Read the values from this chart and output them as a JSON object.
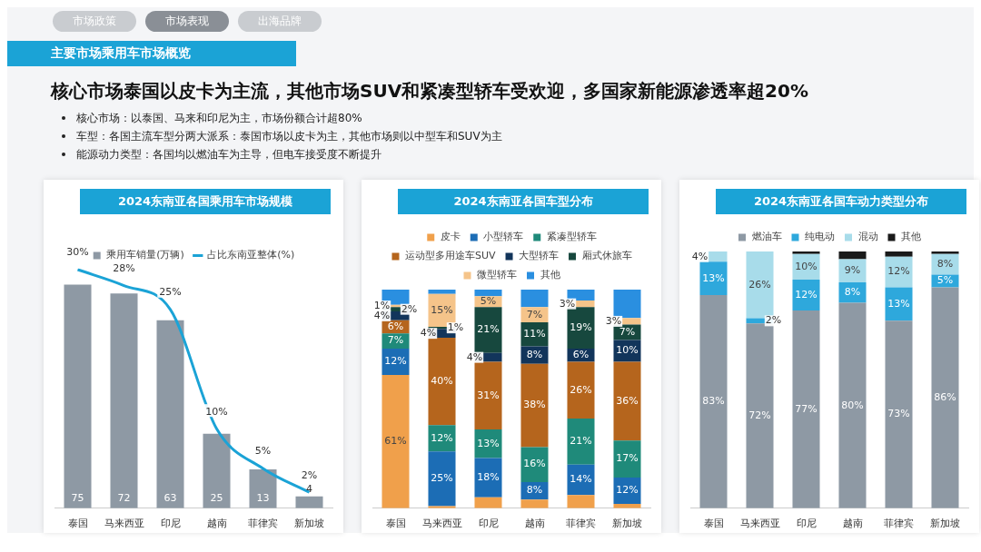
{
  "chart_data": [
    {
      "type": "other",
      "title": "核心市场泰国以皮卡为主流，其他市场SUV和紧凑型轿车受欢迎，多国家新能源渗透率超20%",
      "annotations": [
        "市场政策",
        "市场表现",
        "出海品牌",
        "主要市场乘用车市场概览",
        "核心市场：以泰国、马来和印尼为主，市场份额合计超80%",
        "车型：各国主流车型分两大派系：泰国市场以皮卡为主，其他市场则以中型车和SUV为主",
        "能源动力类型：各国均以燃油车为主导，但电车接受度不断提升"
      ]
    },
    {
      "type": "bar",
      "title": "2024东南亚各国乘用车市场规模",
      "categories": [
        "泰国",
        "马来西亚",
        "印尼",
        "越南",
        "菲律宾",
        "新加坡"
      ],
      "legend": "top",
      "series": [
        {
          "name": "乘用车销量(万辆)",
          "color": "#8e99a4",
          "values": [
            75,
            72,
            63,
            25,
            13,
            4
          ],
          "value_labels": [
            "75",
            "72",
            "63",
            "25",
            "13",
            "4"
          ]
        },
        {
          "name": "占比东南亚整体(%)",
          "type": "line",
          "axis": "y2",
          "color": "#1ba3d6",
          "values": [
            30,
            28,
            25,
            10,
            5,
            2
          ],
          "value_labels": [
            "30%",
            "28%",
            "25%",
            "10%",
            "5%",
            "2%"
          ]
        }
      ]
    },
    {
      "type": "bar",
      "title": "2024东南亚各国车型分布",
      "stacked": true,
      "categories": [
        "泰国",
        "马来西亚",
        "印尼",
        "越南",
        "菲律宾",
        "新加坡"
      ],
      "legend": "top",
      "series": [
        {
          "name": "皮卡",
          "color": "#f0a04b",
          "values": [
            61,
            1,
            5,
            4,
            6,
            2
          ],
          "value_labels": [
            "61%",
            null,
            null,
            null,
            null,
            null
          ]
        },
        {
          "name": "小型轿车",
          "color": "#1c6db5",
          "values": [
            12,
            25,
            18,
            8,
            14,
            12
          ],
          "value_labels": [
            "12%",
            "25%",
            "18%",
            "8%",
            "14%",
            "12%"
          ]
        },
        {
          "name": "紧凑型轿车",
          "color": "#1f8a7a",
          "values": [
            7,
            12,
            13,
            16,
            21,
            17
          ],
          "value_labels": [
            "7%",
            "12%",
            "13%",
            "16%",
            "21%",
            "17%"
          ]
        },
        {
          "name": "运动型多用途车SUV",
          "color": "#b5651d",
          "values": [
            6,
            40,
            31,
            38,
            26,
            36
          ],
          "value_labels": [
            "6%",
            "40%",
            "31%",
            "38%",
            "26%",
            "36%"
          ]
        },
        {
          "name": "大型轿车",
          "color": "#12355b",
          "values": [
            4,
            4,
            4,
            8,
            6,
            10
          ],
          "value_labels": [
            "4%",
            "4%",
            "4%",
            "8%",
            "6%",
            "10%"
          ]
        },
        {
          "name": "厢式休旅车",
          "color": "#17483e",
          "values": [
            2,
            1,
            21,
            11,
            19,
            7
          ],
          "value_labels": [
            "2%",
            "1%",
            "21%",
            "11%",
            "19%",
            "7%"
          ]
        },
        {
          "name": "微型轿车",
          "color": "#f5c48a",
          "values": [
            1,
            15,
            5,
            7,
            3,
            3
          ],
          "value_labels": [
            "1%",
            "15%",
            "5%",
            "7%",
            "3%",
            "3%"
          ]
        },
        {
          "name": "其他",
          "color": "#2a8fe0",
          "values": [
            7,
            2,
            3,
            8,
            5,
            13
          ],
          "value_labels": [
            null,
            null,
            null,
            null,
            null,
            null
          ]
        }
      ]
    },
    {
      "type": "bar",
      "title": "2024东南亚各国车动力类型分布",
      "stacked": true,
      "categories": [
        "泰国",
        "马来西亚",
        "印尼",
        "越南",
        "菲律宾",
        "新加坡"
      ],
      "legend": "top",
      "series": [
        {
          "name": "燃油车",
          "color": "#8e99a4",
          "values": [
            83,
            72,
            77,
            80,
            73,
            86
          ],
          "value_labels": [
            "83%",
            "72%",
            "77%",
            "80%",
            "73%",
            "86%"
          ]
        },
        {
          "name": "纯电动",
          "color": "#2ea8dc",
          "values": [
            13,
            2,
            12,
            8,
            13,
            5
          ],
          "value_labels": [
            "13%",
            "2%",
            "12%",
            "8%",
            "13%",
            "5%"
          ]
        },
        {
          "name": "混动",
          "color": "#a8dcea",
          "values": [
            4,
            26,
            10,
            9,
            12,
            8
          ],
          "value_labels": [
            "4%",
            "26%",
            "10%",
            "9%",
            "12%",
            "8%"
          ]
        },
        {
          "name": "其他",
          "color": "#1a1a1a",
          "values": [
            0,
            0,
            1,
            3,
            2,
            1
          ],
          "value_labels": [
            null,
            null,
            null,
            null,
            null,
            null
          ]
        }
      ]
    }
  ]
}
